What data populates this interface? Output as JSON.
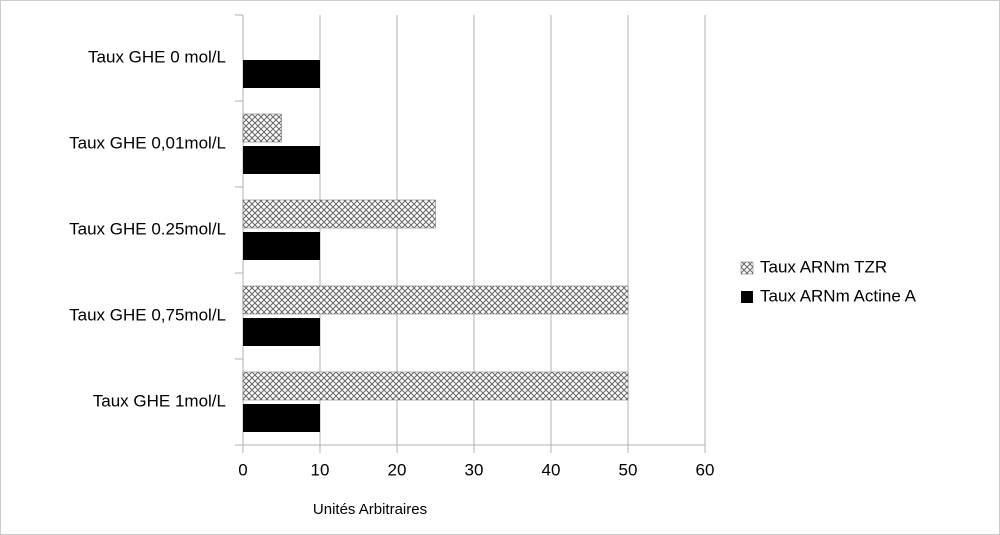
{
  "chart_data": {
    "type": "hbar",
    "categories": [
      "Taux GHE 0 mol/L",
      "Taux GHE 0,01mol/L",
      "Taux GHE 0.25mol/L",
      "Taux GHE 0,75mol/L",
      "Taux GHE 1mol/L"
    ],
    "series": [
      {
        "name": "Taux ARNm TZR",
        "color": "#666666",
        "values": [
          0,
          5,
          25,
          50,
          50
        ]
      },
      {
        "name": "Taux ARNm Actine A",
        "color": "#000000",
        "values": [
          10,
          10,
          10,
          10,
          10
        ]
      }
    ],
    "xlabel": "Unités Arbitraires",
    "xlim": [
      0,
      60
    ],
    "xticks": [
      0,
      10,
      20,
      30,
      40,
      50,
      60
    ],
    "grid": true,
    "legend": "right"
  }
}
